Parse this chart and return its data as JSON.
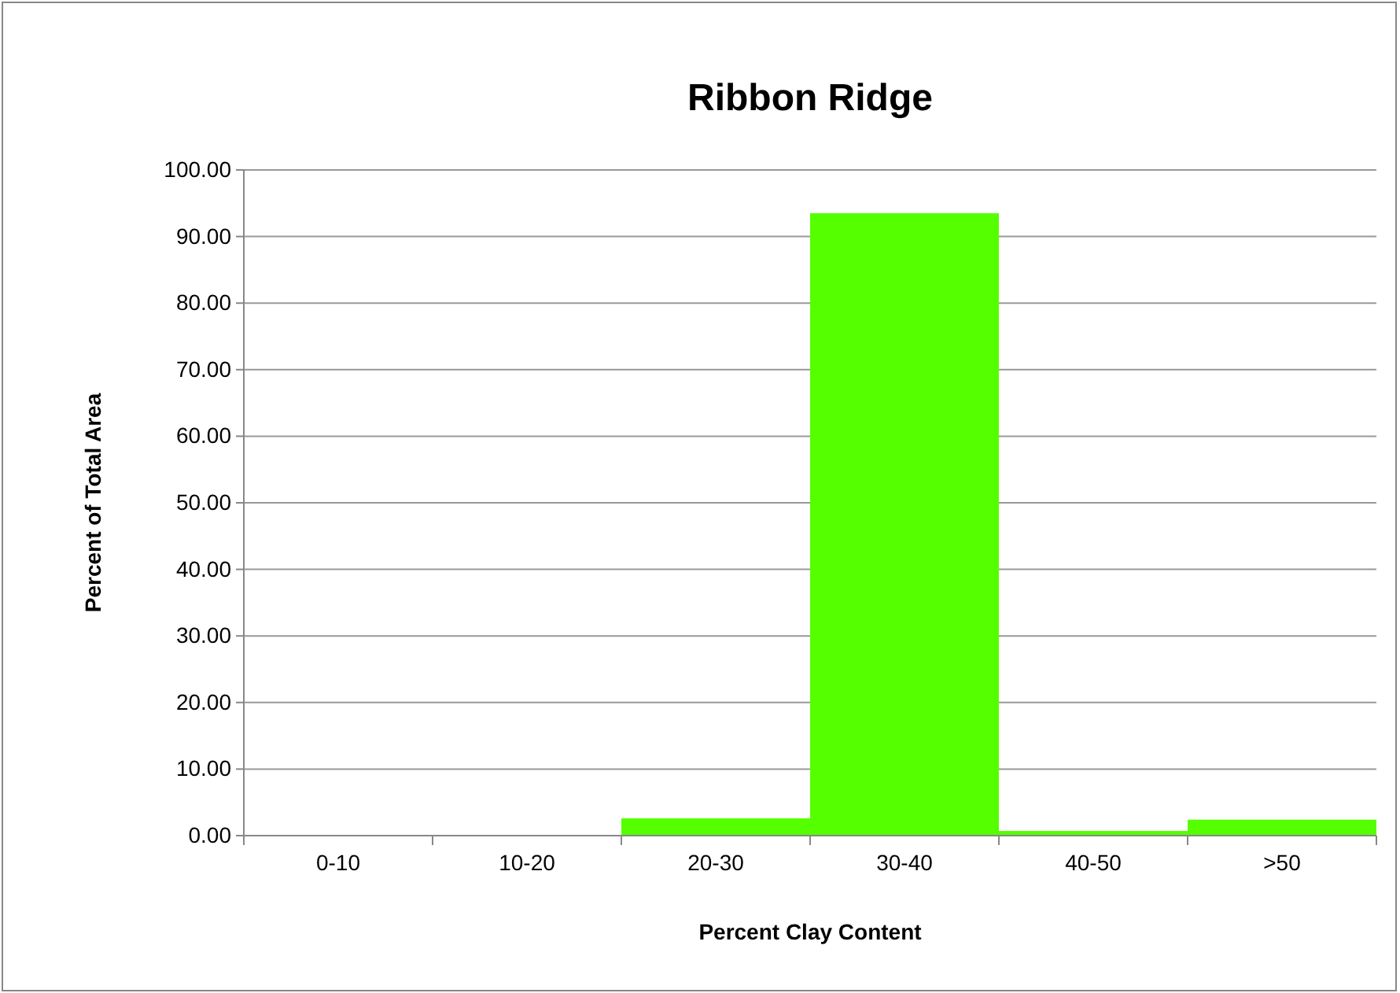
{
  "chart_data": {
    "type": "bar",
    "title": "Ribbon Ridge",
    "xlabel": "Percent Clay Content",
    "ylabel": "Percent of Total Area",
    "categories": [
      "0-10",
      "10-20",
      "20-30",
      "30-40",
      "40-50",
      ">50"
    ],
    "values": [
      0,
      0,
      2.6,
      93.5,
      0.7,
      2.4
    ],
    "color": "#55ff00",
    "ylim": [
      0,
      100
    ],
    "yticks": [
      {
        "value": 0,
        "label": "0.00"
      },
      {
        "value": 10,
        "label": "10.00"
      },
      {
        "value": 20,
        "label": "20.00"
      },
      {
        "value": 30,
        "label": "30.00"
      },
      {
        "value": 40,
        "label": "40.00"
      },
      {
        "value": 50,
        "label": "50.00"
      },
      {
        "value": 60,
        "label": "60.00"
      },
      {
        "value": 70,
        "label": "70.00"
      },
      {
        "value": 80,
        "label": "80.00"
      },
      {
        "value": 90,
        "label": "90.00"
      },
      {
        "value": 100,
        "label": "100.00"
      }
    ],
    "grid": "y"
  }
}
